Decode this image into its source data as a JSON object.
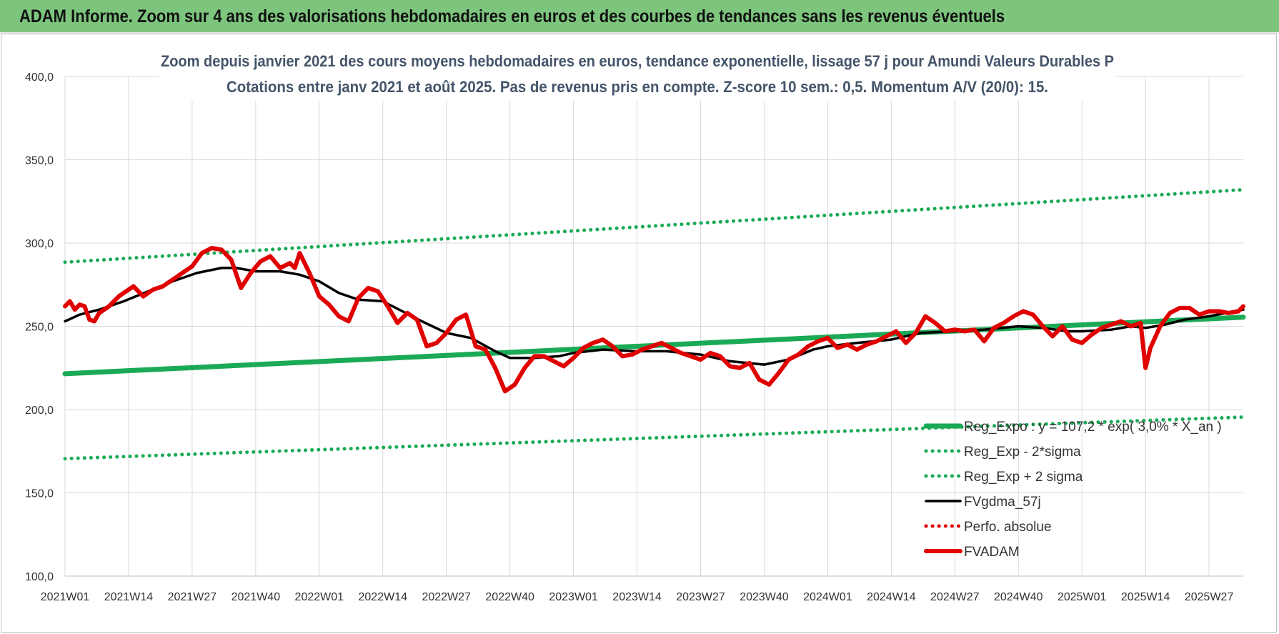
{
  "banner": {
    "title": "ADAM Informe. Zoom sur 4 ans des valorisations hebdomadaires en euros et des courbes de tendances sans les revenus éventuels"
  },
  "chart_data": {
    "type": "line",
    "title_line1": "Zoom depuis janvier 2021 des cours moyens hebdomadaires en euros, tendance exponentielle, lissage 57 j pour Amundi Valeurs Durables P",
    "title_line2": "Cotations entre janv 2021 et août 2025.  Pas de revenus pris en compte. Z-score 10 sem.: 0,5. Momentum A/V (20/0): 15.",
    "ylim": [
      100,
      400
    ],
    "ytick_labels": [
      "100,0",
      "150,0",
      "200,0",
      "250,0",
      "300,0",
      "350,0",
      "400,0"
    ],
    "xtick_labels": [
      "2021W01",
      "2021W14",
      "2021W27",
      "2021W40",
      "2022W01",
      "2022W14",
      "2022W27",
      "2022W40",
      "2023W01",
      "2023W14",
      "2023W27",
      "2023W40",
      "2024W01",
      "2024W14",
      "2024W27",
      "2024W40",
      "2025W01",
      "2025W14",
      "2025W27"
    ],
    "grid": true,
    "legend_position": "bottom-right",
    "x_anchor_weeks": [
      "2021W01",
      "2021W40",
      "2022W27",
      "2022W40",
      "2023W14",
      "2023W40",
      "2024W14",
      "2024W40",
      "2025W01",
      "2025W14",
      "2025W27",
      "2025W34"
    ],
    "series": [
      {
        "name": "Reg_Expo : y = 107,2 * exp( 3,0% *  X_an )",
        "color": "#1aaa55",
        "style": "solid-thick",
        "x_anchors": [
          "2021W01",
          "2025W34"
        ],
        "y_anchors": [
          221.5,
          255.5
        ]
      },
      {
        "name": "Reg_Exp - 2*sigma",
        "color": "#1aaa55",
        "style": "dotted",
        "x_anchors": [
          "2021W01",
          "2025W34"
        ],
        "y_anchors": [
          170.5,
          195.5
        ]
      },
      {
        "name": "Reg_Exp + 2 sigma",
        "color": "#1aaa55",
        "style": "dotted",
        "x_anchors": [
          "2021W01",
          "2025W34"
        ],
        "y_anchors": [
          288.5,
          332
        ]
      },
      {
        "name": "FVgdma_57j",
        "color": "#000000",
        "style": "solid",
        "x_anchors": [
          "2021W01",
          "2021W04",
          "2021W08",
          "2021W13",
          "2021W18",
          "2021W23",
          "2021W28",
          "2021W33",
          "2021W36",
          "2021W40",
          "2021W45",
          "2021W49",
          "2022W01",
          "2022W05",
          "2022W09",
          "2022W14",
          "2022W18",
          "2022W22",
          "2022W27",
          "2022W32",
          "2022W37",
          "2022W40",
          "2022W45",
          "2022W50",
          "2023W01",
          "2023W07",
          "2023W14",
          "2023W20",
          "2023W27",
          "2023W33",
          "2023W40",
          "2023W45",
          "2023W50",
          "2024W01",
          "2024W07",
          "2024W14",
          "2024W20",
          "2024W27",
          "2024W33",
          "2024W40",
          "2024W45",
          "2024W50",
          "2025W01",
          "2025W07",
          "2025W11",
          "2025W14",
          "2025W18",
          "2025W22",
          "2025W27",
          "2025W34"
        ],
        "values": [
          253,
          257,
          260,
          265,
          271,
          277,
          282,
          285,
          285,
          283,
          283,
          281,
          277,
          270,
          266,
          265,
          259,
          253,
          246,
          243,
          235,
          231,
          231,
          232,
          234,
          236,
          235,
          235,
          233,
          229,
          227,
          230,
          236,
          238,
          240,
          242,
          246,
          247,
          248,
          250,
          249,
          247,
          247,
          248,
          250,
          249,
          251,
          254,
          256,
          260
        ]
      },
      {
        "name": "Perfo. absolue",
        "color": "#e00000",
        "style": "dotted",
        "values": []
      },
      {
        "name": "FVADAM",
        "color": "#e00000",
        "style": "solid-thick",
        "x_anchors": [
          "2021W01",
          "2021W02",
          "2021W03",
          "2021W04",
          "2021W05",
          "2021W06",
          "2021W07",
          "2021W08",
          "2021W10",
          "2021W12",
          "2021W13",
          "2021W15",
          "2021W17",
          "2021W19",
          "2021W21",
          "2021W23",
          "2021W25",
          "2021W27",
          "2021W29",
          "2021W31",
          "2021W33",
          "2021W35",
          "2021W37",
          "2021W39",
          "2021W41",
          "2021W43",
          "2021W45",
          "2021W47",
          "2021W48",
          "2021W49",
          "2021W51",
          "2022W01",
          "2022W03",
          "2022W05",
          "2022W07",
          "2022W09",
          "2022W11",
          "2022W13",
          "2022W15",
          "2022W17",
          "2022W19",
          "2022W21",
          "2022W23",
          "2022W25",
          "2022W27",
          "2022W29",
          "2022W31",
          "2022W33",
          "2022W35",
          "2022W37",
          "2022W39",
          "2022W41",
          "2022W43",
          "2022W45",
          "2022W47",
          "2022W49",
          "2022W51",
          "2023W01",
          "2023W03",
          "2023W05",
          "2023W07",
          "2023W09",
          "2023W11",
          "2023W13",
          "2023W15",
          "2023W17",
          "2023W19",
          "2023W21",
          "2023W23",
          "2023W25",
          "2023W27",
          "2023W29",
          "2023W31",
          "2023W33",
          "2023W35",
          "2023W37",
          "2023W39",
          "2023W41",
          "2023W43",
          "2023W45",
          "2023W47",
          "2023W49",
          "2023W51",
          "2024W01",
          "2024W03",
          "2024W05",
          "2024W07",
          "2024W09",
          "2024W11",
          "2024W13",
          "2024W15",
          "2024W17",
          "2024W19",
          "2024W21",
          "2024W23",
          "2024W25",
          "2024W27",
          "2024W29",
          "2024W31",
          "2024W33",
          "2024W35",
          "2024W37",
          "2024W39",
          "2024W41",
          "2024W43",
          "2024W45",
          "2024W47",
          "2024W49",
          "2024W51",
          "2025W01",
          "2025W03",
          "2025W05",
          "2025W07",
          "2025W09",
          "2025W11",
          "2025W13",
          "2025W14",
          "2025W15",
          "2025W17",
          "2025W19",
          "2025W21",
          "2025W23",
          "2025W25",
          "2025W27",
          "2025W29",
          "2025W31",
          "2025W33",
          "2025W34"
        ],
        "values": [
          262,
          265,
          260,
          263,
          262,
          254,
          253,
          258,
          262,
          268,
          270,
          274,
          268,
          272,
          274,
          278,
          282,
          286,
          294,
          297,
          296,
          290,
          273,
          282,
          289,
          292,
          285,
          288,
          285,
          294,
          282,
          268,
          263,
          256,
          253,
          267,
          273,
          271,
          262,
          252,
          258,
          254,
          238,
          240,
          246,
          254,
          257,
          238,
          236,
          225,
          211,
          215,
          225,
          232,
          232,
          229,
          226,
          231,
          237,
          240,
          242,
          238,
          232,
          233,
          236,
          238,
          240,
          237,
          234,
          232,
          230,
          234,
          232,
          226,
          225,
          228,
          218,
          215,
          222,
          230,
          233,
          238,
          241,
          243,
          237,
          239,
          236,
          239,
          241,
          244,
          247,
          240,
          246,
          256,
          252,
          247,
          248,
          247,
          248,
          241,
          249,
          252,
          256,
          259,
          257,
          250,
          244,
          250,
          242,
          240,
          245,
          249,
          251,
          253,
          250,
          252,
          225,
          237,
          250,
          258,
          261,
          261,
          257,
          259,
          259,
          258,
          259,
          262
        ]
      }
    ]
  }
}
